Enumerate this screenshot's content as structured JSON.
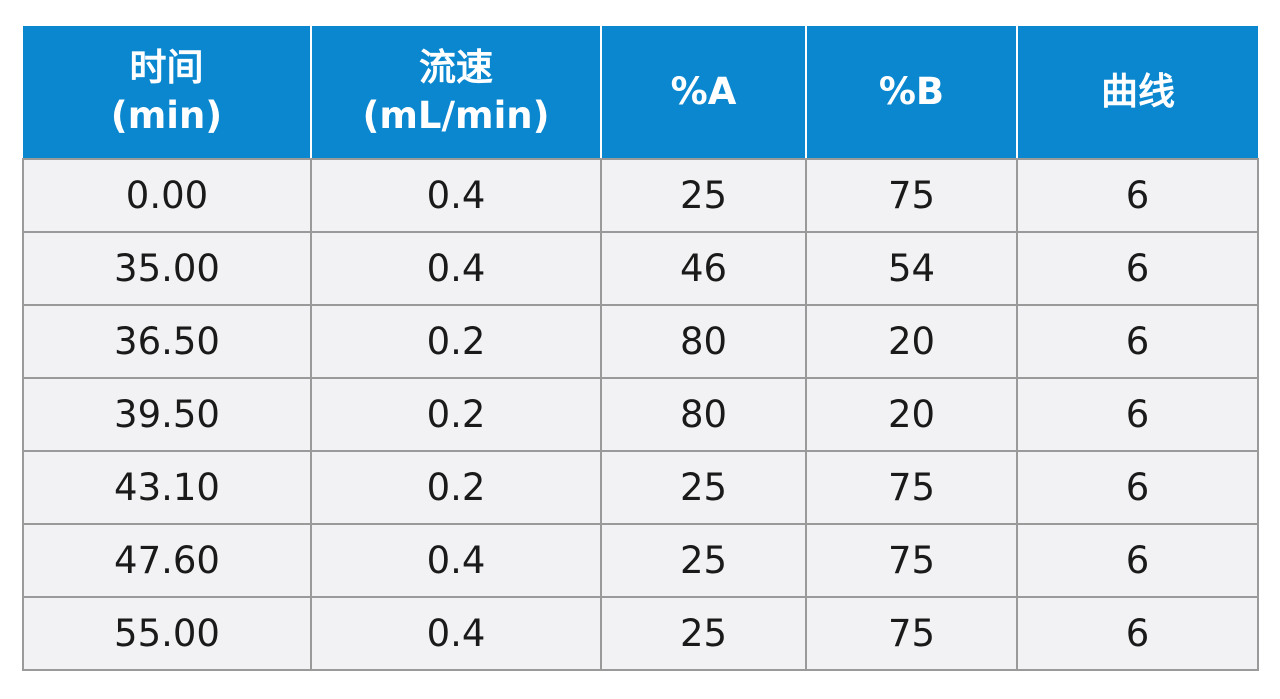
{
  "table": {
    "headers": [
      {
        "line1": "时间",
        "line2": "(min)"
      },
      {
        "line1": "流速",
        "line2": "(mL/min)"
      },
      {
        "line1": "%A",
        "line2": ""
      },
      {
        "line1": "%B",
        "line2": ""
      },
      {
        "line1": "曲线",
        "line2": ""
      }
    ],
    "rows": [
      [
        "0.00",
        "0.4",
        "25",
        "75",
        "6"
      ],
      [
        "35.00",
        "0.4",
        "46",
        "54",
        "6"
      ],
      [
        "36.50",
        "0.2",
        "80",
        "20",
        "6"
      ],
      [
        "39.50",
        "0.2",
        "80",
        "20",
        "6"
      ],
      [
        "43.10",
        "0.2",
        "25",
        "75",
        "6"
      ],
      [
        "47.60",
        "0.4",
        "25",
        "75",
        "6"
      ],
      [
        "55.00",
        "0.4",
        "25",
        "75",
        "6"
      ]
    ],
    "colors": {
      "header_bg": "#0a87cf",
      "header_text": "#ffffff",
      "cell_bg": "#f2f2f4",
      "grid": "#9a9a9a"
    }
  }
}
